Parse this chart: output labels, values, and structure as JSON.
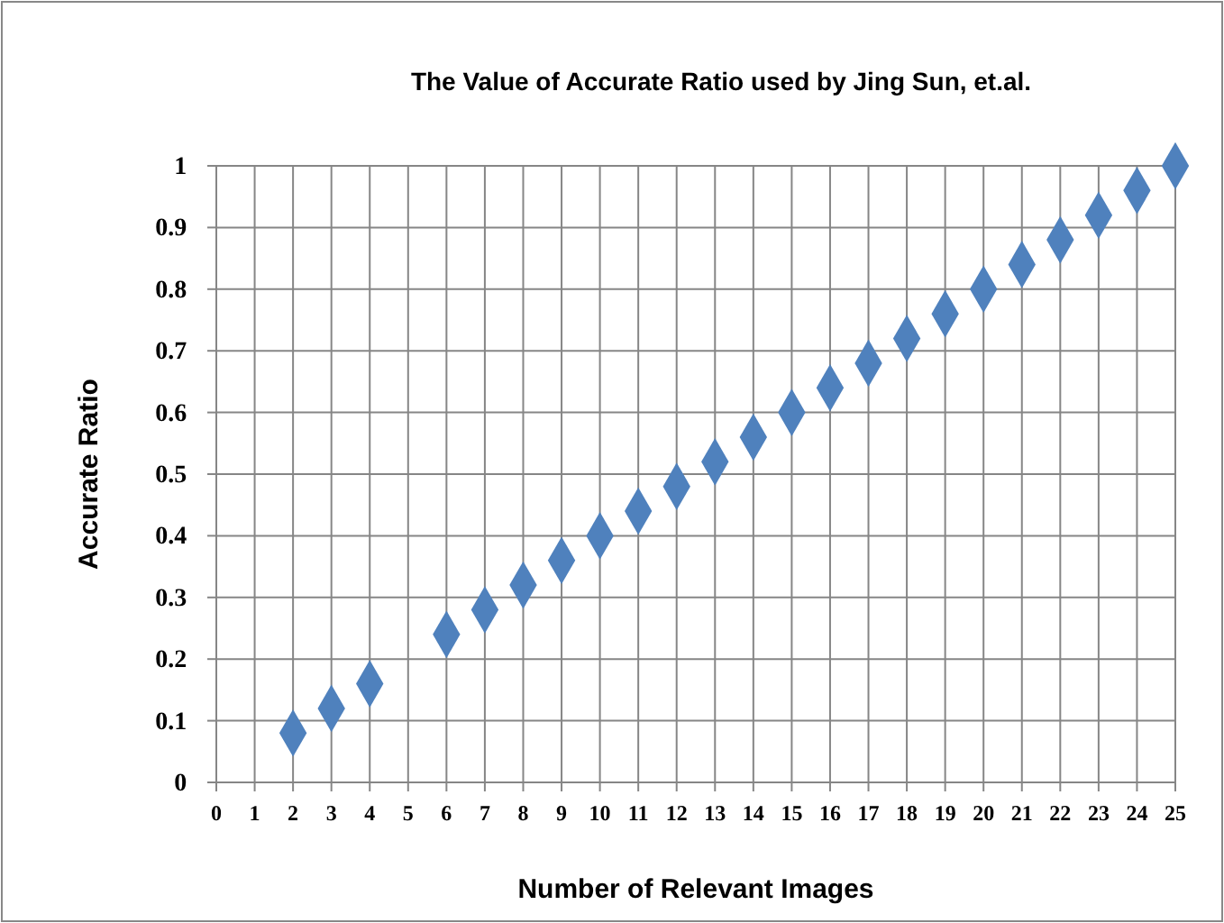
{
  "chart_data": {
    "type": "scatter",
    "title": "The Value of Accurate Ratio used by Jing Sun, et.al.",
    "xlabel": "Number of Relevant Images",
    "ylabel": "Accurate Ratio",
    "x": [
      2,
      3,
      4,
      6,
      7,
      8,
      9,
      10,
      11,
      12,
      13,
      14,
      15,
      16,
      17,
      18,
      19,
      20,
      21,
      22,
      23,
      24,
      25
    ],
    "series": [
      {
        "color": "#4f81bd",
        "values": [
          0.08,
          0.12,
          0.16,
          0.24,
          0.28,
          0.32,
          0.36,
          0.4,
          0.44,
          0.48,
          0.52,
          0.56,
          0.6,
          0.64,
          0.68,
          0.72,
          0.76,
          0.8,
          0.84,
          0.88,
          0.92,
          0.96,
          1
        ]
      }
    ],
    "xlim": [
      0,
      25
    ],
    "xticks": [
      0,
      1,
      2,
      3,
      4,
      5,
      6,
      7,
      8,
      9,
      10,
      11,
      12,
      13,
      14,
      15,
      16,
      17,
      18,
      19,
      20,
      21,
      22,
      23,
      24,
      25
    ],
    "ylim": [
      0,
      1
    ],
    "yticks": [
      0,
      0.1,
      0.2,
      0.3,
      0.4,
      0.5,
      0.6,
      0.7,
      0.8,
      0.9,
      1
    ],
    "grid": true,
    "marker": "diamond"
  }
}
